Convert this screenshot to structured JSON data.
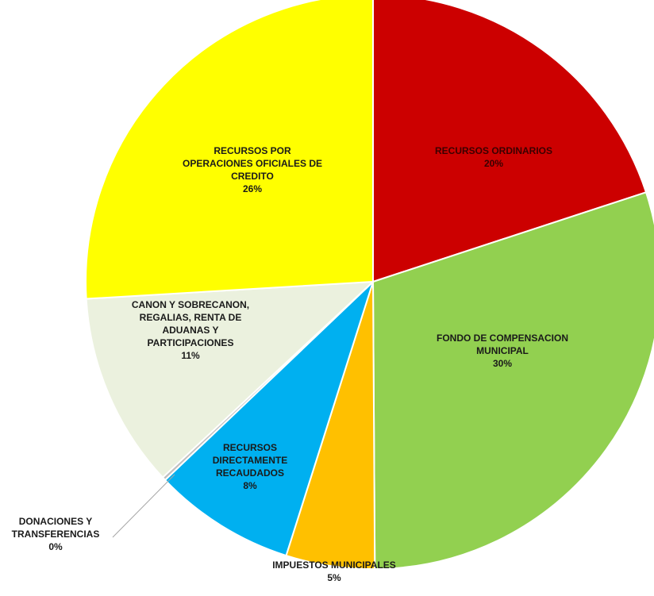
{
  "chart_data": {
    "type": "pie",
    "title": "",
    "slices": [
      {
        "name": "RECURSOS ORDINARIOS",
        "label_lines": [
          "RECURSOS ORDINARIOS"
        ],
        "percent_label": "20%",
        "value": 20,
        "color": "#cc0000"
      },
      {
        "name": "FONDO DE COMPENSACION MUNICIPAL",
        "label_lines": [
          "FONDO DE COMPENSACION",
          "MUNICIPAL"
        ],
        "percent_label": "30%",
        "value": 30,
        "color": "#92d050"
      },
      {
        "name": "IMPUESTOS MUNICIPALES",
        "label_lines": [
          "IMPUESTOS MUNICIPALES"
        ],
        "percent_label": "5%",
        "value": 5,
        "color": "#ffc000"
      },
      {
        "name": "RECURSOS DIRECTAMENTE RECAUDADOS",
        "label_lines": [
          "RECURSOS",
          "DIRECTAMENTE",
          "RECAUDADOS"
        ],
        "percent_label": "8%",
        "value": 8,
        "color": "#00b0f0"
      },
      {
        "name": "DONACIONES Y TRANSFERENCIAS",
        "label_lines": [
          "DONACIONES Y",
          "TRANSFERENCIAS"
        ],
        "percent_label": "0%",
        "value": 0.2,
        "color": "#c0c0c0"
      },
      {
        "name": "CANON Y SOBRECANON, REGALIAS, RENTA DE ADUANAS Y PARTICIPACIONES",
        "label_lines": [
          "CANON Y SOBRECANON,",
          "REGALIAS, RENTA DE",
          "ADUANAS Y",
          "PARTICIPACIONES"
        ],
        "percent_label": "11%",
        "value": 11,
        "color": "#ebf1de"
      },
      {
        "name": "RECURSOS POR OPERACIONES OFICIALES DE CREDITO",
        "label_lines": [
          "RECURSOS POR",
          "OPERACIONES OFICIALES DE",
          "CREDITO"
        ],
        "percent_label": "26%",
        "value": 26,
        "color": "#ffff00"
      }
    ]
  }
}
